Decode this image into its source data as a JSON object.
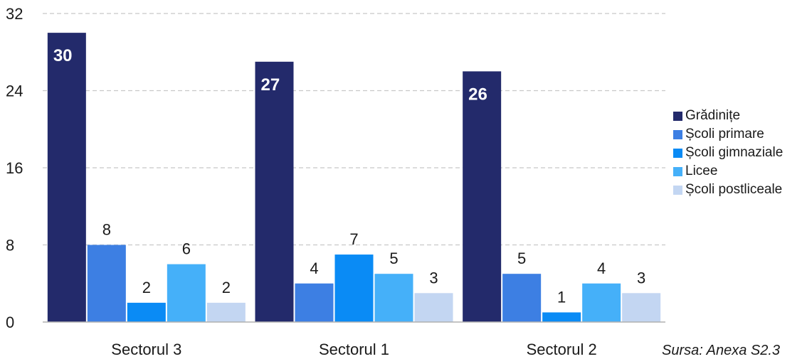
{
  "chart_data": {
    "type": "bar",
    "categories": [
      "Sectorul 3",
      "Sectorul 1",
      "Sectorul 2"
    ],
    "series": [
      {
        "name": "Grădinițe",
        "values": [
          30,
          27,
          26
        ],
        "color": "#232A6B"
      },
      {
        "name": "Școli primare",
        "values": [
          8,
          4,
          5
        ],
        "color": "#3D7FE3"
      },
      {
        "name": "Școli gimnaziale",
        "values": [
          2,
          7,
          1
        ],
        "color": "#0A8BF5"
      },
      {
        "name": "Licee",
        "values": [
          6,
          5,
          4
        ],
        "color": "#45B0F9"
      },
      {
        "name": "Școli postliceale",
        "values": [
          2,
          3,
          3
        ],
        "color": "#C3D6F2"
      }
    ],
    "ylim": [
      0,
      32
    ],
    "yticks": [
      0,
      8,
      16,
      24,
      32
    ],
    "grid": true,
    "legend_position": "right"
  },
  "source_note": "Sursa: Anexa S2.3"
}
